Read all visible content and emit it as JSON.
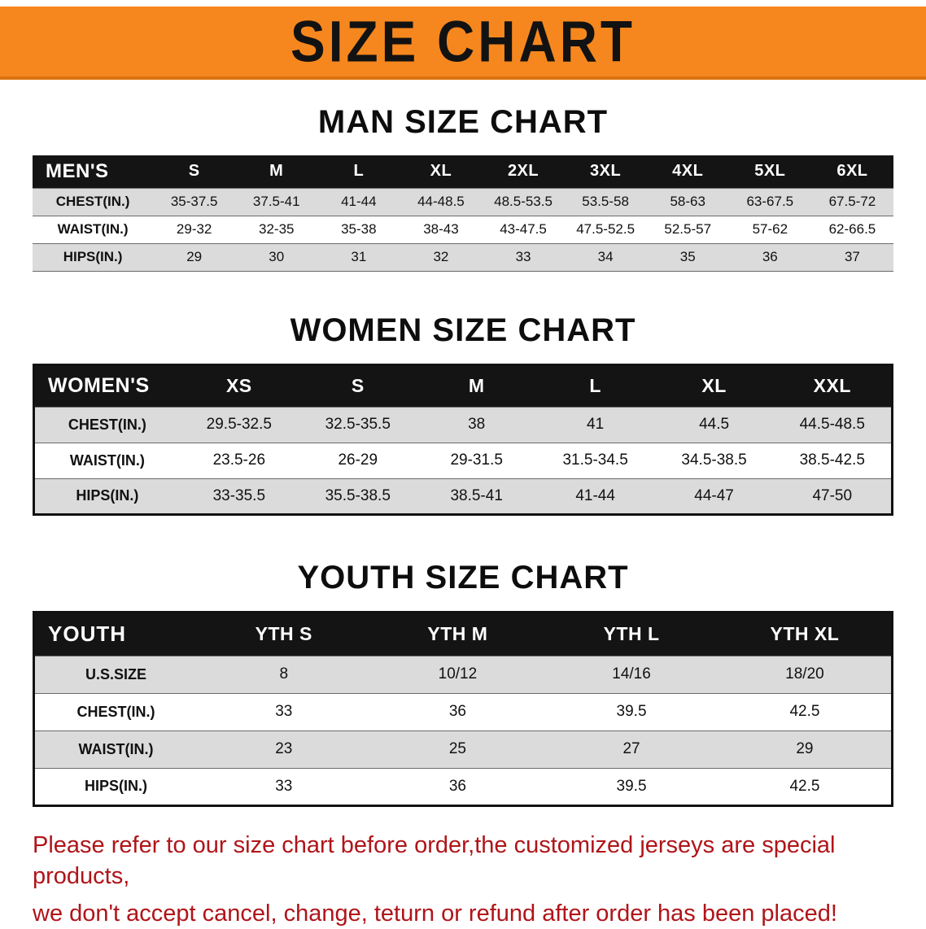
{
  "banner": {
    "title": "SIZE CHART"
  },
  "colors": {
    "banner_bg": "#F6871E",
    "banner_border": "#D9720F",
    "table_header_bg": "#141414",
    "table_header_text": "#FFFFFF",
    "row_alt_bg": "#DBDBDB",
    "disclaimer_red": "#B01419"
  },
  "men": {
    "heading": "MAN SIZE CHART",
    "table": {
      "header": [
        "MEN'S",
        "S",
        "M",
        "L",
        "XL",
        "2XL",
        "3XL",
        "4XL",
        "5XL",
        "6XL"
      ],
      "rows": [
        [
          "CHEST(IN.)",
          "35-37.5",
          "37.5-41",
          "41-44",
          "44-48.5",
          "48.5-53.5",
          "53.5-58",
          "58-63",
          "63-67.5",
          "67.5-72"
        ],
        [
          "WAIST(IN.)",
          "29-32",
          "32-35",
          "35-38",
          "38-43",
          "43-47.5",
          "47.5-52.5",
          "52.5-57",
          "57-62",
          "62-66.5"
        ],
        [
          "HIPS(IN.)",
          "29",
          "30",
          "31",
          "32",
          "33",
          "34",
          "35",
          "36",
          "37"
        ]
      ]
    }
  },
  "women": {
    "heading": "WOMEN SIZE CHART",
    "table": {
      "header": [
        "WOMEN'S",
        "XS",
        "S",
        "M",
        "L",
        "XL",
        "XXL"
      ],
      "rows": [
        [
          "CHEST(IN.)",
          "29.5-32.5",
          "32.5-35.5",
          "38",
          "41",
          "44.5",
          "44.5-48.5"
        ],
        [
          "WAIST(IN.)",
          "23.5-26",
          "26-29",
          "29-31.5",
          "31.5-34.5",
          "34.5-38.5",
          "38.5-42.5"
        ],
        [
          "HIPS(IN.)",
          "33-35.5",
          "35.5-38.5",
          "38.5-41",
          "41-44",
          "44-47",
          "47-50"
        ]
      ]
    }
  },
  "youth": {
    "heading": "YOUTH SIZE CHART",
    "table": {
      "header": [
        "YOUTH",
        "YTH S",
        "YTH M",
        "YTH L",
        "YTH XL"
      ],
      "rows": [
        [
          "U.S.SIZE",
          "8",
          "10/12",
          "14/16",
          "18/20"
        ],
        [
          "CHEST(IN.)",
          "33",
          "36",
          "39.5",
          "42.5"
        ],
        [
          "WAIST(IN.)",
          "23",
          "25",
          "27",
          "29"
        ],
        [
          "HIPS(IN.)",
          "33",
          "36",
          "39.5",
          "42.5"
        ]
      ]
    }
  },
  "disclaimer": {
    "line1": "Please refer to our size chart before order,the customized jerseys are special products,",
    "line2": "we don't accept cancel, change, teturn or refund after order has been placed!"
  }
}
